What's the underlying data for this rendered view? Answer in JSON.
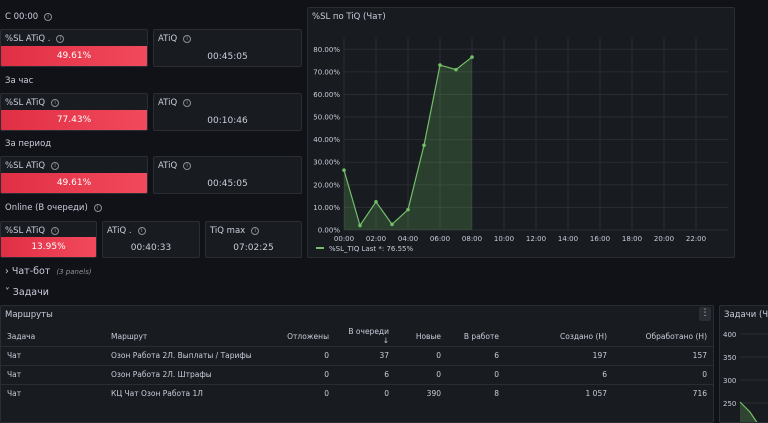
{
  "sections": {
    "since_midnight": "С 00:00",
    "per_hour": "За час",
    "per_period": "За период",
    "online": "Online (В очереди)"
  },
  "stats": {
    "midnight_sl": {
      "title": "%SL ATiQ .",
      "value": "49.61%"
    },
    "midnight_atiq": {
      "title": "ATiQ",
      "value": "00:45:05"
    },
    "hour_sl": {
      "title": "%SL ATiQ",
      "value": "77.43%"
    },
    "hour_atiq": {
      "title": "ATiQ",
      "value": "00:10:46"
    },
    "period_sl": {
      "title": "%SL ATiQ",
      "value": "49.61%"
    },
    "period_atiq": {
      "title": "ATiQ",
      "value": "00:45:05"
    },
    "online_sl": {
      "title": "%SL ATiQ",
      "value": "13.95%"
    },
    "online_atiq": {
      "title": "ATiQ .",
      "value": "00:40:33"
    },
    "online_tiqmax": {
      "title": "TiQ max",
      "value": "07:02:25"
    }
  },
  "chart_panel": {
    "title": "%SL по TiQ (Чат)"
  },
  "chart_data": {
    "type": "area",
    "x": [
      "00:00",
      "01:00",
      "02:00",
      "03:00",
      "04:00",
      "05:00",
      "06:00",
      "07:00",
      "08:00"
    ],
    "series": [
      {
        "name": "%SL_TIQ",
        "values": [
          26.5,
          2.0,
          12.5,
          2.5,
          9.0,
          37.5,
          73.0,
          71.0,
          76.55
        ]
      }
    ],
    "xticks": [
      "00:00",
      "02:00",
      "04:00",
      "06:00",
      "08:00",
      "10:00",
      "12:00",
      "14:00",
      "16:00",
      "18:00",
      "20:00",
      "22:00"
    ],
    "yticks": [
      "0.00%",
      "10.00%",
      "20.00%",
      "30.00%",
      "40.00%",
      "50.00%",
      "60.00%",
      "70.00%",
      "80.00%"
    ],
    "ylim": [
      0,
      85
    ],
    "xlim": [
      0,
      24
    ],
    "legend_text": "%SL_TIQ   Last *: 76.55%",
    "color": "#73bf69"
  },
  "rows": {
    "chatbot": {
      "label": "Чат-бот",
      "sub": "(3 panels)"
    },
    "tasks": {
      "label": "Задачи"
    }
  },
  "routes": {
    "title": "Маршруты",
    "columns": [
      "Задача",
      "Маршрут",
      "Отложены",
      "В очереди ↓",
      "Новые",
      "В работе",
      "Создано (Н)",
      "Обработано (Н)"
    ],
    "rows": [
      [
        "Чат",
        "Озон Работа 2Л. Выплаты / Тарифы",
        "0",
        "37",
        "0",
        "6",
        "197",
        "157"
      ],
      [
        "Чат",
        "Озон Работа 2Л. Штрафы",
        "0",
        "6",
        "0",
        "0",
        "6",
        "0"
      ],
      [
        "Чат",
        "КЦ Чат Озон Работа 1Л",
        "0",
        "0",
        "390",
        "8",
        "1 057",
        "716"
      ]
    ]
  },
  "tasks_panel": {
    "title": "Задачи (Ча",
    "yticks": [
      "400",
      "350",
      "300",
      "250"
    ]
  }
}
